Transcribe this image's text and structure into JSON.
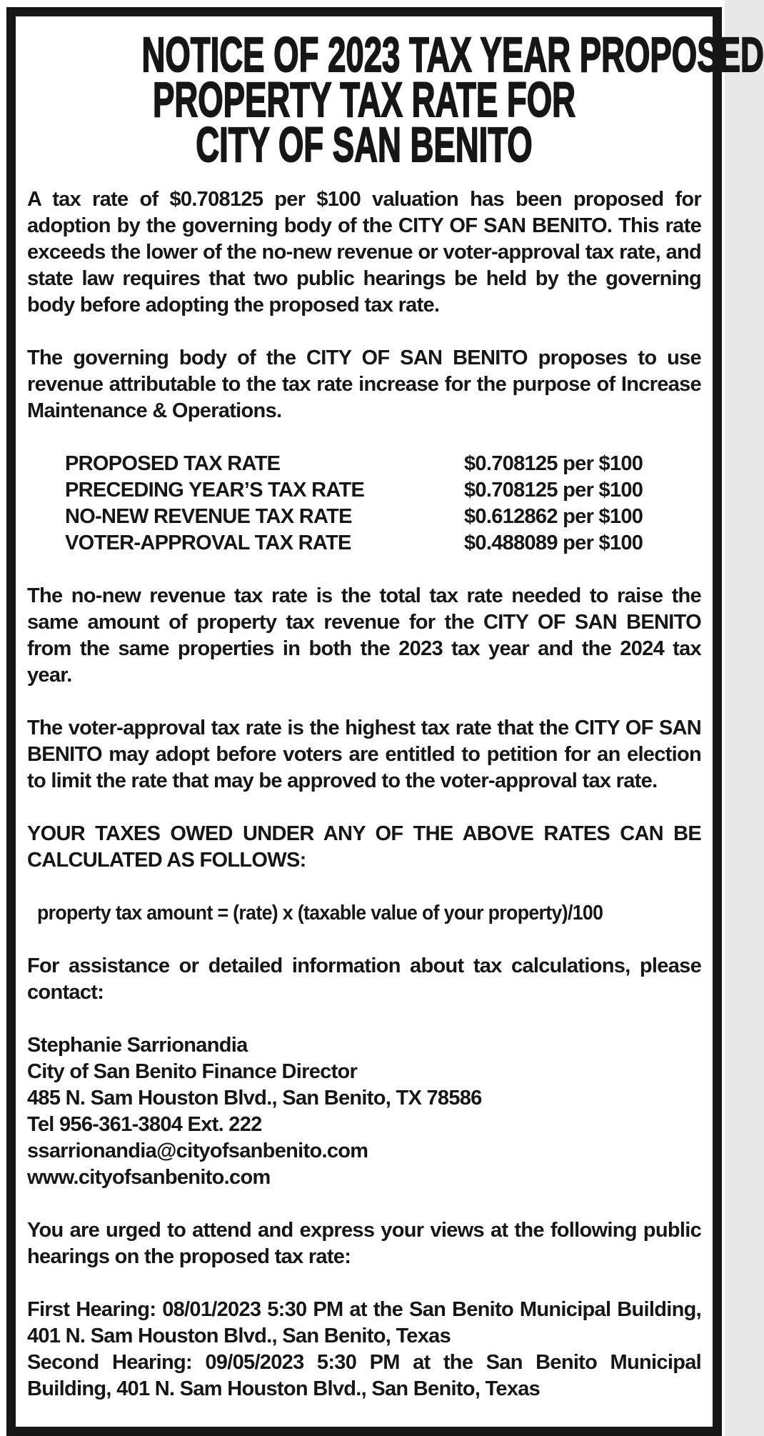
{
  "notice": {
    "colors": {
      "ink": "#161616",
      "paper": "#ffffff",
      "border": "#151515"
    },
    "title_lines": [
      "NOTICE OF 2023 TAX YEAR PROPOSED",
      "PROPERTY TAX RATE FOR",
      "CITY OF SAN BENITO"
    ],
    "para_intro": "A tax rate of $0.708125 per $100 valuation has been proposed for adoption by the governing body of the CITY OF SAN BENITO. This rate exceeds the lower of the no-new revenue or voter-approval tax rate, and state law requires that two public hearings be held by the governing body before adopting the proposed tax rate.",
    "para_purpose": "The governing body of the CITY OF SAN BENITO proposes to use revenue attributable to the tax rate increase for the purpose of Increase Maintenance & Operations.",
    "rates": [
      {
        "label": "PROPOSED TAX RATE",
        "value": "$0.708125 per $100"
      },
      {
        "label": "PRECEDING YEAR’S TAX RATE",
        "value": "$0.708125 per $100"
      },
      {
        "label": "NO-NEW REVENUE TAX RATE",
        "value": "$0.612862 per $100"
      },
      {
        "label": "VOTER-APPROVAL TAX RATE",
        "value": "$0.488089 per $100"
      }
    ],
    "para_no_new_revenue": "The no-new revenue tax rate is the total tax rate needed to raise the same amount of property tax revenue for the CITY OF SAN BENITO from the same properties in both the 2023 tax year and the 2024 tax year.",
    "para_voter_approval": "The voter-approval tax rate is the highest tax rate that the CITY OF SAN BENITO may adopt before voters are entitled to petition for an election to limit the rate that may be approved to the voter-approval tax rate.",
    "para_calc_heading": "YOUR TAXES OWED UNDER ANY OF THE ABOVE RATES CAN BE CALCULATED AS FOLLOWS:",
    "formula": "property tax amount = (rate) x (taxable value of your property)/100",
    "para_assistance": "For assistance or detailed information about tax calculations, please contact:",
    "contact_lines": [
      "Stephanie Sarrionandia",
      "City of San Benito Finance Director",
      "485 N. Sam Houston Blvd., San Benito, TX 78586",
      "Tel 956-361-3804 Ext. 222",
      "ssarrionandia@cityofsanbenito.com",
      "www.cityofsanbenito.com"
    ],
    "para_urged": "You are urged to attend and express your views at the following public hearings on the proposed tax rate:",
    "hearings": [
      "First Hearing: 08/01/2023 5:30 PM at the San Benito Municipal Building, 401 N. Sam Houston Blvd., San Benito, Texas",
      "Second Hearing: 09/05/2023 5:30 PM at the San Benito Municipal Building, 401 N. Sam Houston Blvd., San Benito, Texas"
    ]
  }
}
